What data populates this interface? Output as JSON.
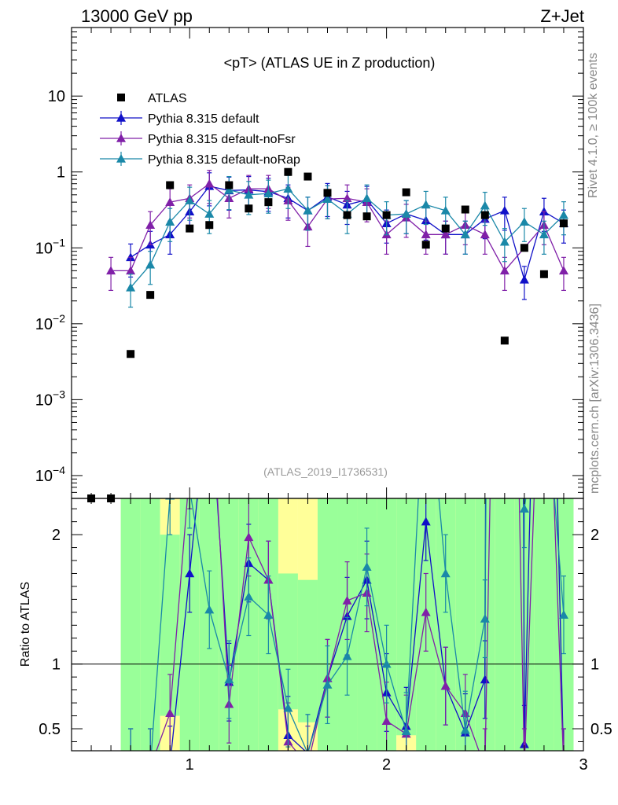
{
  "header": {
    "left": "13000 GeV pp",
    "right": "Z+Jet"
  },
  "side_labels": {
    "rivet": "Rivet 4.1.0, ≥ 100k events",
    "mcplots": "mcplots.cern.ch [arXiv:1306.3436]"
  },
  "chart_data": {
    "type": "scatter",
    "title": "<pT> (ATLAS UE in Z production)",
    "watermark": "(ATLAS_2019_I1736531)",
    "main": {
      "yscale": "log",
      "ylim": [
        5e-05,
        80
      ],
      "yticks": [
        {
          "value": 0.0001,
          "base": "10",
          "exp": "−4"
        },
        {
          "value": 0.001,
          "base": "10",
          "exp": "−3"
        },
        {
          "value": 0.01,
          "base": "10",
          "exp": "−2"
        },
        {
          "value": 0.1,
          "base": "10",
          "exp": "−1"
        },
        {
          "value": 1,
          "base": "1",
          "exp": ""
        },
        {
          "value": 10,
          "base": "10",
          "exp": ""
        }
      ]
    },
    "ratio": {
      "ylabel": "Ratio to ATLAS",
      "ylim": [
        0.33,
        2.28
      ],
      "yticks": [
        {
          "value": 0.5,
          "label": "0.5"
        },
        {
          "value": 1,
          "label": "1"
        },
        {
          "value": 2,
          "label": "2"
        }
      ]
    },
    "xlim": [
      0.4,
      3.0
    ],
    "xticks": [
      {
        "value": 1,
        "label": "1"
      },
      {
        "value": 2,
        "label": "2"
      },
      {
        "value": 3,
        "label": "3"
      }
    ],
    "x": [
      0.5,
      0.6,
      0.7,
      0.8,
      0.9,
      1.0,
      1.1,
      1.2,
      1.3,
      1.4,
      1.5,
      1.6,
      1.7,
      1.8,
      1.9,
      2.0,
      2.1,
      2.2,
      2.3,
      2.4,
      2.5,
      2.6,
      2.7,
      2.8,
      2.9
    ],
    "reference": {
      "name": "ATLAS",
      "color": "#000000",
      "values": [
        5e-05,
        5e-05,
        0.004,
        0.024,
        0.67,
        0.18,
        0.2,
        0.67,
        0.33,
        0.4,
        1.0,
        0.87,
        0.53,
        0.27,
        0.26,
        0.27,
        0.54,
        0.11,
        0.18,
        0.32,
        0.27,
        0.006,
        0.1,
        0.045,
        0.21
      ]
    },
    "series": [
      {
        "name": "Pythia 8.315 default",
        "color": "#1010c8",
        "values": [
          null,
          null,
          0.075,
          0.11,
          0.15,
          0.3,
          0.65,
          0.57,
          0.58,
          0.55,
          0.45,
          0.31,
          0.47,
          0.37,
          0.43,
          0.21,
          0.28,
          0.23,
          0.15,
          0.15,
          0.24,
          0.31,
          0.038,
          0.3,
          0.21
        ],
        "ratio": [
          null,
          null,
          0.2,
          0.2,
          0.22,
          1.7,
          3.2,
          0.86,
          1.78,
          1.65,
          0.45,
          0.31,
          0.89,
          1.37,
          1.65,
          0.78,
          0.52,
          2.1,
          0.83,
          0.47,
          0.88,
          48.0,
          0.38,
          6.7,
          0.2
        ]
      },
      {
        "name": "Pythia 8.315 default-noFsr",
        "color": "#8020a8",
        "values": [
          null,
          0.05,
          0.05,
          0.2,
          0.4,
          0.45,
          0.7,
          0.45,
          0.6,
          0.6,
          0.42,
          0.19,
          0.44,
          0.45,
          0.4,
          0.15,
          0.25,
          0.15,
          0.15,
          0.2,
          0.15,
          0.05,
          null,
          0.2,
          0.05
        ],
        "ratio": [
          null,
          null,
          0.2,
          0.2,
          0.62,
          2.5,
          3.4,
          0.69,
          1.98,
          1.65,
          0.4,
          0.22,
          0.89,
          1.49,
          1.55,
          0.56,
          0.46,
          1.4,
          0.83,
          0.62,
          0.2,
          8.3,
          0.2,
          4.4,
          0.2
        ]
      },
      {
        "name": "Pythia 8.315 default-noRap",
        "color": "#1a88a8",
        "values": [
          null,
          null,
          0.03,
          0.06,
          0.22,
          0.42,
          0.28,
          0.58,
          0.5,
          0.52,
          0.6,
          0.31,
          0.44,
          0.28,
          0.45,
          0.27,
          0.28,
          0.37,
          0.31,
          0.15,
          0.36,
          0.12,
          0.22,
          0.15,
          0.27
        ],
        "ratio": [
          null,
          null,
          0.2,
          0.2,
          2.3,
          2.35,
          1.42,
          0.88,
          1.52,
          1.38,
          0.66,
          0.31,
          0.84,
          1.06,
          1.75,
          1.0,
          0.48,
          3.4,
          1.7,
          0.49,
          1.35,
          20.0,
          2.2,
          3.3,
          1.38
        ]
      }
    ],
    "bands": {
      "inner_color": "#99ff99",
      "outer_color": "#ffff99",
      "inner": [
        null,
        null,
        [
          0.33,
          2.28
        ],
        [
          0.33,
          2.28
        ],
        [
          0.6,
          2.0
        ],
        [
          0.33,
          2.28
        ],
        [
          0.33,
          2.28
        ],
        [
          0.33,
          2.28
        ],
        [
          0.33,
          2.28
        ],
        [
          0.33,
          2.28
        ],
        [
          0.65,
          1.7
        ],
        [
          0.55,
          1.65
        ],
        [
          0.33,
          2.28
        ],
        [
          0.33,
          2.28
        ],
        [
          0.33,
          2.28
        ],
        [
          0.33,
          2.28
        ],
        [
          0.45,
          2.28
        ],
        [
          0.33,
          2.28
        ],
        [
          0.33,
          2.28
        ],
        [
          0.33,
          2.28
        ],
        [
          0.33,
          2.28
        ],
        [
          0.33,
          2.28
        ],
        [
          0.33,
          2.28
        ],
        [
          0.33,
          2.28
        ],
        [
          0.33,
          2.28
        ]
      ],
      "outer": [
        null,
        null,
        [
          0.33,
          2.28
        ],
        [
          0.33,
          2.28
        ],
        [
          0.33,
          2.28
        ],
        [
          0.33,
          2.28
        ],
        [
          0.33,
          2.28
        ],
        [
          0.33,
          2.28
        ],
        [
          0.33,
          2.28
        ],
        [
          0.33,
          2.28
        ],
        [
          0.33,
          2.28
        ],
        [
          0.33,
          2.28
        ],
        [
          0.33,
          2.28
        ],
        [
          0.33,
          2.28
        ],
        [
          0.33,
          2.28
        ],
        [
          0.33,
          2.28
        ],
        [
          0.33,
          2.28
        ],
        [
          0.33,
          2.28
        ],
        [
          0.33,
          2.28
        ],
        [
          0.33,
          2.28
        ],
        [
          0.33,
          2.28
        ],
        [
          0.33,
          2.28
        ],
        [
          0.33,
          2.28
        ],
        [
          0.33,
          2.28
        ],
        [
          0.33,
          2.28
        ]
      ]
    }
  }
}
